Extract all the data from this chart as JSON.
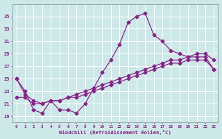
{
  "x_values": [
    0,
    1,
    2,
    3,
    4,
    5,
    6,
    7,
    8,
    9,
    10,
    11,
    12,
    13,
    14,
    15,
    16,
    17,
    18,
    19,
    20,
    21,
    22,
    23
  ],
  "line_main": [
    25,
    23,
    20.0,
    19.5,
    21.5,
    20.0,
    20.0,
    19.5,
    21.0,
    23.5,
    26.0,
    28.0,
    30.5,
    34.0,
    35.0,
    35.5,
    32.0,
    31.0,
    29.5,
    29.0,
    28.5,
    28.5,
    28.5,
    26.5
  ],
  "line_upper": [
    25.0,
    22.5,
    21.5,
    21.0,
    21.5,
    21.5,
    22.0,
    22.5,
    23.0,
    23.5,
    24.0,
    24.5,
    25.0,
    25.5,
    26.0,
    26.5,
    27.0,
    27.5,
    28.0,
    28.0,
    28.5,
    29.0,
    29.0,
    28.0
  ],
  "line_lower": [
    22.0,
    22.0,
    21.0,
    21.0,
    21.5,
    21.5,
    22.0,
    22.0,
    22.5,
    23.0,
    23.5,
    24.0,
    24.5,
    25.0,
    25.5,
    26.0,
    26.5,
    27.0,
    27.5,
    27.5,
    28.0,
    28.0,
    28.0,
    26.5
  ],
  "line_color": "#882288",
  "bg_color": "#cce8e8",
  "grid_color": "#b0d0d0",
  "xlabel": "Windchill (Refroidissement éolien,°C)",
  "ylim": [
    18,
    37
  ],
  "yticks": [
    19,
    21,
    23,
    25,
    27,
    29,
    31,
    33,
    35
  ],
  "xlim": [
    -0.5,
    23.5
  ],
  "xticks": [
    0,
    1,
    2,
    3,
    4,
    5,
    6,
    7,
    8,
    9,
    10,
    11,
    12,
    13,
    14,
    15,
    16,
    17,
    18,
    19,
    20,
    21,
    22,
    23
  ]
}
